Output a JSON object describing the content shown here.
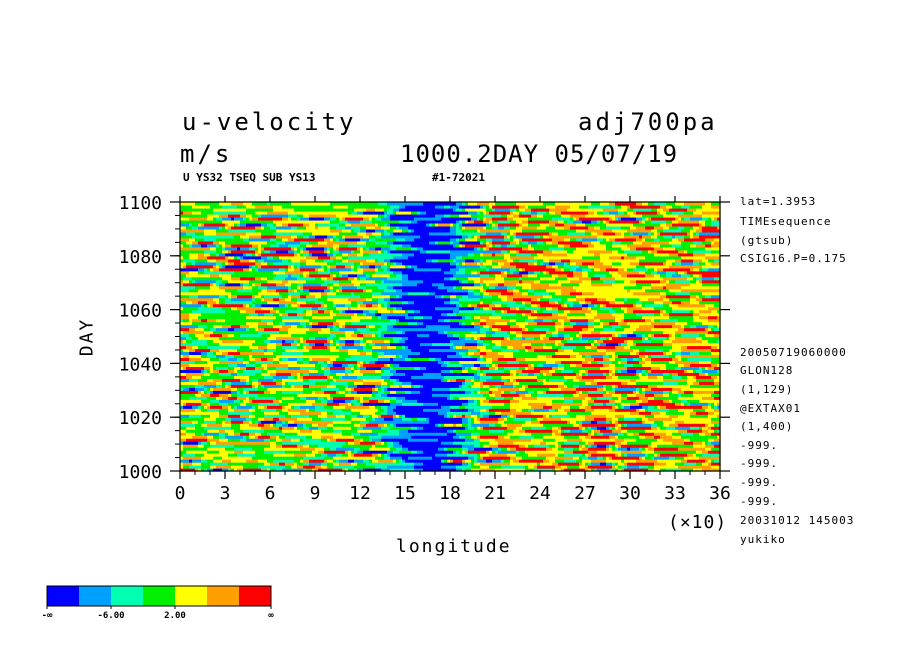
{
  "header": {
    "variable": "u-velocity",
    "units": "m/s",
    "experiment": "adj700pa",
    "time_date": "1000.2DAY 05/07/19",
    "sub_left": "U YS32 TSEQ SUB YS13",
    "sub_mid": "#1-72021"
  },
  "side_info": {
    "top": [
      "lat=1.3953",
      "TIMEsequence",
      "(gtsub)",
      "CSIG16.P=0.175"
    ],
    "bottom": [
      "20050719060000",
      "GLON128",
      "(1,129)",
      "@EXTAX01",
      "(1,400)",
      "-999.",
      "-999.",
      "-999.",
      "-999.",
      "20031012 145003",
      "yukiko"
    ]
  },
  "colors": {
    "palette": [
      "#0000ff",
      "#00a0ff",
      "#00ffb0",
      "#00f000",
      "#ffff00",
      "#ffa000",
      "#ff0000"
    ]
  },
  "chart_data": {
    "type": "heatmap",
    "title": "u-velocity",
    "xlabel": "longitude",
    "x_multiplier": "(×10)",
    "ylabel": "DAY",
    "xlim": [
      0,
      36
    ],
    "ylim": [
      1000,
      1100
    ],
    "x_ticks": [
      "0",
      "3",
      "6",
      "9",
      "12",
      "15",
      "18",
      "21",
      "24",
      "27",
      "30",
      "33",
      "36"
    ],
    "y_ticks": [
      "1000",
      "1020",
      "1040",
      "1060",
      "1080",
      "1100"
    ],
    "x_tick_values": [
      0,
      3,
      6,
      9,
      12,
      15,
      18,
      21,
      24,
      27,
      30,
      33,
      36
    ],
    "y_tick_values": [
      1000,
      1020,
      1040,
      1060,
      1080,
      1100
    ],
    "colorbar_labels": [
      "-∞",
      "-6.00",
      "2.00",
      "∞"
    ],
    "features": [
      {
        "description": "negative (blue) band",
        "lon_center": 16.5,
        "lon_halfwidth": 2.5
      },
      {
        "description": "positive (red/orange) streaks",
        "lon_range": [
          20,
          36
        ]
      },
      {
        "description": "positive (red/orange) streaks",
        "lon_range": [
          0,
          10
        ]
      }
    ]
  }
}
